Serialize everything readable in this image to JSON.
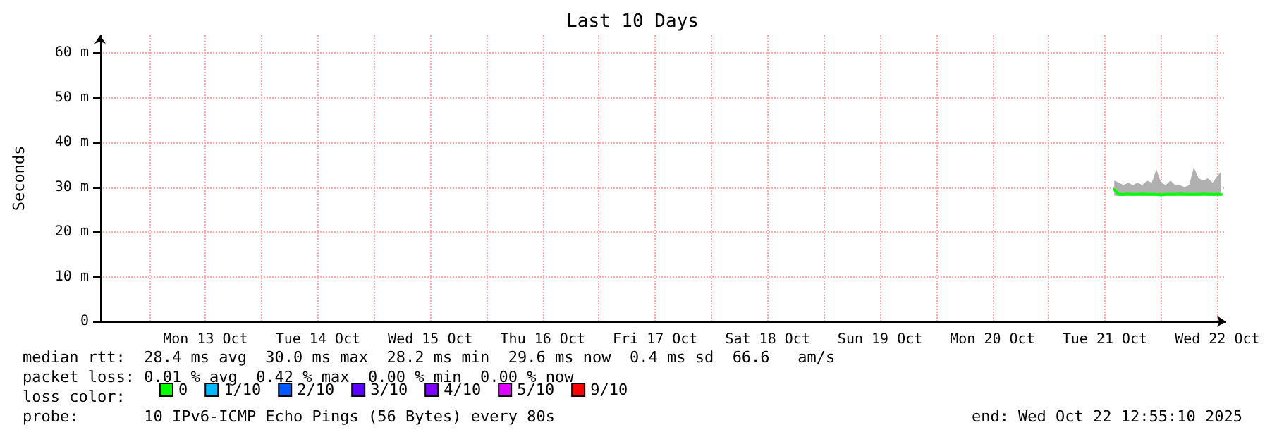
{
  "chart_data": {
    "type": "line",
    "title": "Last 10 Days",
    "ylabel": "Seconds",
    "legend_title": "loss color:",
    "x": [
      "2025-10-21T14:00",
      "2025-10-21T15:00",
      "2025-10-21T16:00",
      "2025-10-21T17:00",
      "2025-10-21T18:00",
      "2025-10-21T19:00",
      "2025-10-21T20:00",
      "2025-10-21T21:00",
      "2025-10-21T22:00",
      "2025-10-21T23:00",
      "2025-10-22T00:00",
      "2025-10-22T01:00",
      "2025-10-22T02:00",
      "2025-10-22T03:00",
      "2025-10-22T04:00",
      "2025-10-22T05:00",
      "2025-10-22T06:00",
      "2025-10-22T07:00",
      "2025-10-22T08:00",
      "2025-10-22T09:00",
      "2025-10-22T10:00",
      "2025-10-22T11:00",
      "2025-10-22T12:00",
      "2025-10-22T12:50"
    ],
    "series": [
      {
        "name": "0",
        "color": "#00ff00",
        "values": [
          29.5,
          28.4,
          28.4,
          28.5,
          28.4,
          28.4,
          28.5,
          28.4,
          28.4,
          28.4,
          28.3,
          28.4,
          28.4,
          28.4,
          28.5,
          28.4,
          28.4,
          28.4,
          28.4,
          28.5,
          28.4,
          28.4,
          28.4,
          28.4
        ],
        "lower": [
          28.1,
          28.1,
          28.1,
          28.1,
          28.1,
          28.1,
          28.1,
          28.1,
          28.1,
          28.1,
          28.1,
          28.1,
          28.1,
          28.1,
          28.1,
          28.1,
          28.1,
          28.1,
          28.1,
          28.1,
          28.1,
          28.1,
          28.1,
          28.1
        ],
        "upper": [
          31.5,
          31,
          30.5,
          31,
          30.5,
          31,
          30.5,
          31.5,
          31,
          34,
          31,
          30.5,
          31.5,
          30.5,
          30.5,
          30,
          30.5,
          34.5,
          32,
          31.5,
          32,
          31,
          32.5,
          33.5
        ]
      },
      {
        "name": "1/10",
        "color": "#00b8ff",
        "values": [
          null,
          null,
          null,
          null,
          null,
          null,
          null,
          null,
          null,
          null,
          null,
          null,
          null,
          null,
          null,
          null,
          null,
          null,
          null,
          null,
          null,
          null,
          null,
          null
        ]
      },
      {
        "name": "2/10",
        "color": "#0059ff",
        "values": [
          null,
          null,
          null,
          null,
          null,
          null,
          null,
          null,
          null,
          null,
          null,
          null,
          null,
          null,
          null,
          null,
          null,
          null,
          null,
          null,
          null,
          null,
          null,
          null
        ]
      },
      {
        "name": "3/10",
        "color": "#5e00ff",
        "values": [
          null,
          null,
          null,
          null,
          null,
          null,
          null,
          null,
          null,
          null,
          null,
          null,
          null,
          null,
          null,
          null,
          null,
          null,
          null,
          null,
          null,
          null,
          null,
          null
        ]
      },
      {
        "name": "4/10",
        "color": "#7e00ff",
        "values": [
          null,
          null,
          null,
          null,
          null,
          null,
          null,
          null,
          null,
          null,
          null,
          null,
          null,
          null,
          null,
          null,
          null,
          null,
          null,
          null,
          null,
          null,
          null,
          null
        ]
      },
      {
        "name": "5/10",
        "color": "#dd00ff",
        "values": [
          null,
          null,
          null,
          null,
          null,
          null,
          null,
          null,
          null,
          null,
          null,
          null,
          null,
          null,
          null,
          null,
          null,
          null,
          null,
          null,
          null,
          null,
          null,
          null
        ]
      },
      {
        "name": "9/10",
        "color": "#ff0000",
        "values": [
          null,
          null,
          null,
          null,
          null,
          null,
          null,
          null,
          null,
          null,
          null,
          null,
          null,
          null,
          null,
          null,
          null,
          null,
          null,
          null,
          null,
          null,
          null,
          null
        ]
      }
    ],
    "xlim": [
      "2025-10-12T13:30",
      "2025-10-22T13:45"
    ],
    "xticks": [
      {
        "value": "2025-10-13T00:00",
        "label": null
      },
      {
        "value": "2025-10-13T12:00",
        "label": "Mon 13 Oct"
      },
      {
        "value": "2025-10-14T00:00",
        "label": null
      },
      {
        "value": "2025-10-14T12:00",
        "label": "Tue 14 Oct"
      },
      {
        "value": "2025-10-15T00:00",
        "label": null
      },
      {
        "value": "2025-10-15T12:00",
        "label": "Wed 15 Oct"
      },
      {
        "value": "2025-10-16T00:00",
        "label": null
      },
      {
        "value": "2025-10-16T12:00",
        "label": "Thu 16 Oct"
      },
      {
        "value": "2025-10-17T00:00",
        "label": null
      },
      {
        "value": "2025-10-17T12:00",
        "label": "Fri 17 Oct"
      },
      {
        "value": "2025-10-18T00:00",
        "label": null
      },
      {
        "value": "2025-10-18T12:00",
        "label": "Sat 18 Oct"
      },
      {
        "value": "2025-10-19T00:00",
        "label": null
      },
      {
        "value": "2025-10-19T12:00",
        "label": "Sun 19 Oct"
      },
      {
        "value": "2025-10-20T00:00",
        "label": null
      },
      {
        "value": "2025-10-20T12:00",
        "label": "Mon 20 Oct"
      },
      {
        "value": "2025-10-21T00:00",
        "label": null
      },
      {
        "value": "2025-10-21T12:00",
        "label": "Tue 21 Oct"
      },
      {
        "value": "2025-10-22T00:00",
        "label": null
      },
      {
        "value": "2025-10-22T12:00",
        "label": "Wed 22 Oct"
      }
    ],
    "ylim": [
      0,
      64
    ],
    "yticks": [
      {
        "value": 0,
        "label": "0"
      },
      {
        "value": 10,
        "label": "10 m"
      },
      {
        "value": 20,
        "label": "20 m"
      },
      {
        "value": 30,
        "label": "30 m"
      },
      {
        "value": 40,
        "label": "40 m"
      },
      {
        "value": 50,
        "label": "50 m"
      },
      {
        "value": 60,
        "label": "60 m"
      }
    ],
    "grid": true,
    "legend": "bottom left",
    "marker": "none",
    "line_style": "solid",
    "annotations": [
      "median rtt:  28.4 ms avg  30.0 ms max  28.2 ms min  29.6 ms now  0.4 ms sd  66.6   am/s",
      "packet loss: 0.01 % avg  0.42 % max  0.00 % min  0.00 % now",
      "probe:       10 IPv6-ICMP Echo Pings (56 Bytes) every 80s",
      "end: Wed Oct 22 12:55:10 2025"
    ]
  }
}
